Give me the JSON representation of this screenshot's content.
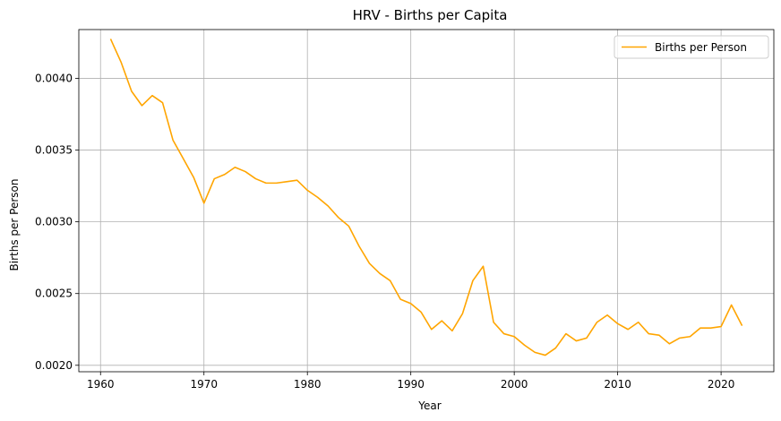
{
  "chart_data": {
    "type": "line",
    "title": "HRV - Births per Capita",
    "xlabel": "Year",
    "ylabel": "Births per Person",
    "xlim": [
      1957.9,
      2025.1
    ],
    "ylim": [
      0.001955,
      0.00434
    ],
    "xticks": [
      1960,
      1970,
      1980,
      1990,
      2000,
      2010,
      2020
    ],
    "yticks": [
      0.002,
      0.0025,
      0.003,
      0.0035,
      0.004
    ],
    "ytick_labels": [
      "0.0020",
      "0.0025",
      "0.0030",
      "0.0035",
      "0.0040"
    ],
    "grid": true,
    "legend_position": "top-right",
    "series": [
      {
        "name": "Births per Person",
        "color": "#ffa500",
        "x": [
          1961,
          1962,
          1963,
          1964,
          1965,
          1966,
          1967,
          1968,
          1969,
          1970,
          1971,
          1972,
          1973,
          1974,
          1975,
          1976,
          1977,
          1978,
          1979,
          1980,
          1981,
          1982,
          1983,
          1984,
          1985,
          1986,
          1987,
          1988,
          1989,
          1990,
          1991,
          1992,
          1993,
          1994,
          1995,
          1996,
          1997,
          1998,
          1999,
          2000,
          2001,
          2002,
          2003,
          2004,
          2005,
          2006,
          2007,
          2008,
          2009,
          2010,
          2011,
          2012,
          2013,
          2014,
          2015,
          2016,
          2017,
          2018,
          2019,
          2020,
          2021,
          2022
        ],
        "y": [
          0.00427,
          0.00411,
          0.00391,
          0.00381,
          0.00388,
          0.00383,
          0.00357,
          0.00344,
          0.00331,
          0.00313,
          0.0033,
          0.00333,
          0.00338,
          0.00335,
          0.0033,
          0.00327,
          0.00327,
          0.00328,
          0.00329,
          0.00322,
          0.00317,
          0.00311,
          0.00303,
          0.00297,
          0.00283,
          0.00271,
          0.00264,
          0.00259,
          0.00246,
          0.00243,
          0.00237,
          0.00225,
          0.00231,
          0.00224,
          0.00236,
          0.00259,
          0.00269,
          0.0023,
          0.00222,
          0.0022,
          0.00214,
          0.00209,
          0.00207,
          0.00212,
          0.00222,
          0.00217,
          0.00219,
          0.0023,
          0.00235,
          0.00229,
          0.00225,
          0.0023,
          0.00222,
          0.00221,
          0.00215,
          0.00219,
          0.0022,
          0.00226,
          0.00226,
          0.00227,
          0.00242,
          0.00228
        ]
      }
    ]
  }
}
